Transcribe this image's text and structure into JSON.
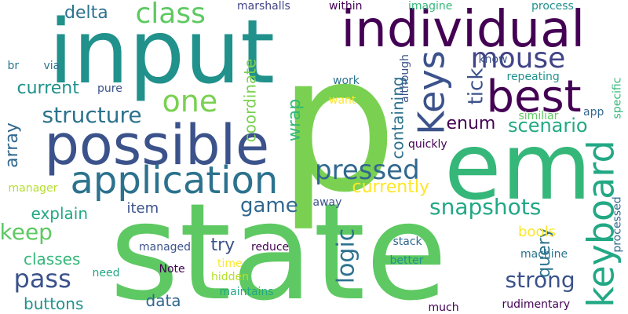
{
  "words": [
    {
      "text": "state",
      "color": "#5ec962"
    },
    {
      "text": "p",
      "color": "#7ad151"
    },
    {
      "text": "input",
      "color": "#21918c"
    },
    {
      "text": "em",
      "color": "#35b779"
    },
    {
      "text": "individual",
      "color": "#440154"
    },
    {
      "text": "possible",
      "color": "#3b528b"
    },
    {
      "text": "application",
      "color": "#2c728e"
    },
    {
      "text": "best",
      "color": "#440154"
    },
    {
      "text": "keyboard",
      "color": "#22a884"
    },
    {
      "text": "pressed",
      "color": "#31688e"
    },
    {
      "text": "Keys",
      "color": "#3b528b"
    },
    {
      "text": "mouse",
      "color": "#414487"
    },
    {
      "text": "one",
      "color": "#7ad151"
    },
    {
      "text": "class",
      "color": "#5ec962"
    },
    {
      "text": "structure",
      "color": "#2c728e"
    },
    {
      "text": "snapshots",
      "color": "#22a884"
    },
    {
      "text": "pass",
      "color": "#3b528b"
    },
    {
      "text": "strong",
      "color": "#3b528b"
    },
    {
      "text": "logic",
      "color": "#2c728e"
    },
    {
      "text": "game",
      "color": "#31688e"
    },
    {
      "text": "keep",
      "color": "#5ec962"
    },
    {
      "text": "currently",
      "color": "#fde725"
    },
    {
      "text": "delta",
      "color": "#2c728e"
    },
    {
      "text": "coordinate",
      "color": "#7ad151"
    },
    {
      "text": "wrap",
      "color": "#35b779"
    },
    {
      "text": "tick",
      "color": "#3b528b"
    },
    {
      "text": "scenario",
      "color": "#22a884"
    },
    {
      "text": "enum",
      "color": "#440154"
    },
    {
      "text": "containing",
      "color": "#2c728e"
    },
    {
      "text": "current",
      "color": "#21918c"
    },
    {
      "text": "array",
      "color": "#31688e"
    },
    {
      "text": "explain",
      "color": "#22a884"
    },
    {
      "text": "classes",
      "color": "#35b779"
    },
    {
      "text": "buttons",
      "color": "#21918c"
    },
    {
      "text": "data",
      "color": "#31688e"
    },
    {
      "text": "item",
      "color": "#3b528b"
    },
    {
      "text": "query",
      "color": "#2c728e"
    },
    {
      "text": "bools",
      "color": "#fde725"
    },
    {
      "text": "try",
      "color": "#3b528b"
    },
    {
      "text": "marshalls",
      "color": "#414487"
    },
    {
      "text": "within",
      "color": "#440154"
    },
    {
      "text": "imagine",
      "color": "#35b779"
    },
    {
      "text": "process",
      "color": "#21918c"
    },
    {
      "text": "br",
      "color": "#2c728e"
    },
    {
      "text": "via",
      "color": "#2c728e"
    },
    {
      "text": "pure",
      "color": "#3b528b"
    },
    {
      "text": "work",
      "color": "#2c728e"
    },
    {
      "text": "want",
      "color": "#fde725"
    },
    {
      "text": "although",
      "color": "#3b528b"
    },
    {
      "text": "know",
      "color": "#3b528b"
    },
    {
      "text": "repeating",
      "color": "#21918c"
    },
    {
      "text": "app",
      "color": "#31688e"
    },
    {
      "text": "similiar",
      "color": "#5ec962"
    },
    {
      "text": "quickly",
      "color": "#440154"
    },
    {
      "text": "specific",
      "color": "#35b779"
    },
    {
      "text": "manager",
      "color": "#b5de2b"
    },
    {
      "text": "away",
      "color": "#3b528b"
    },
    {
      "text": "managed",
      "color": "#3b528b"
    },
    {
      "text": "reduce",
      "color": "#440154"
    },
    {
      "text": "stack",
      "color": "#31688e"
    },
    {
      "text": "machine",
      "color": "#2c728e"
    },
    {
      "text": "processed",
      "color": "#31688e"
    },
    {
      "text": "Note",
      "color": "#440154"
    },
    {
      "text": "time",
      "color": "#fde725"
    },
    {
      "text": "need",
      "color": "#22a884"
    },
    {
      "text": "hidden",
      "color": "#b5de2b"
    },
    {
      "text": "better",
      "color": "#21918c"
    },
    {
      "text": "maintains",
      "color": "#22a884"
    },
    {
      "text": "much",
      "color": "#440154"
    },
    {
      "text": "rudimentary",
      "color": "#440154"
    }
  ]
}
